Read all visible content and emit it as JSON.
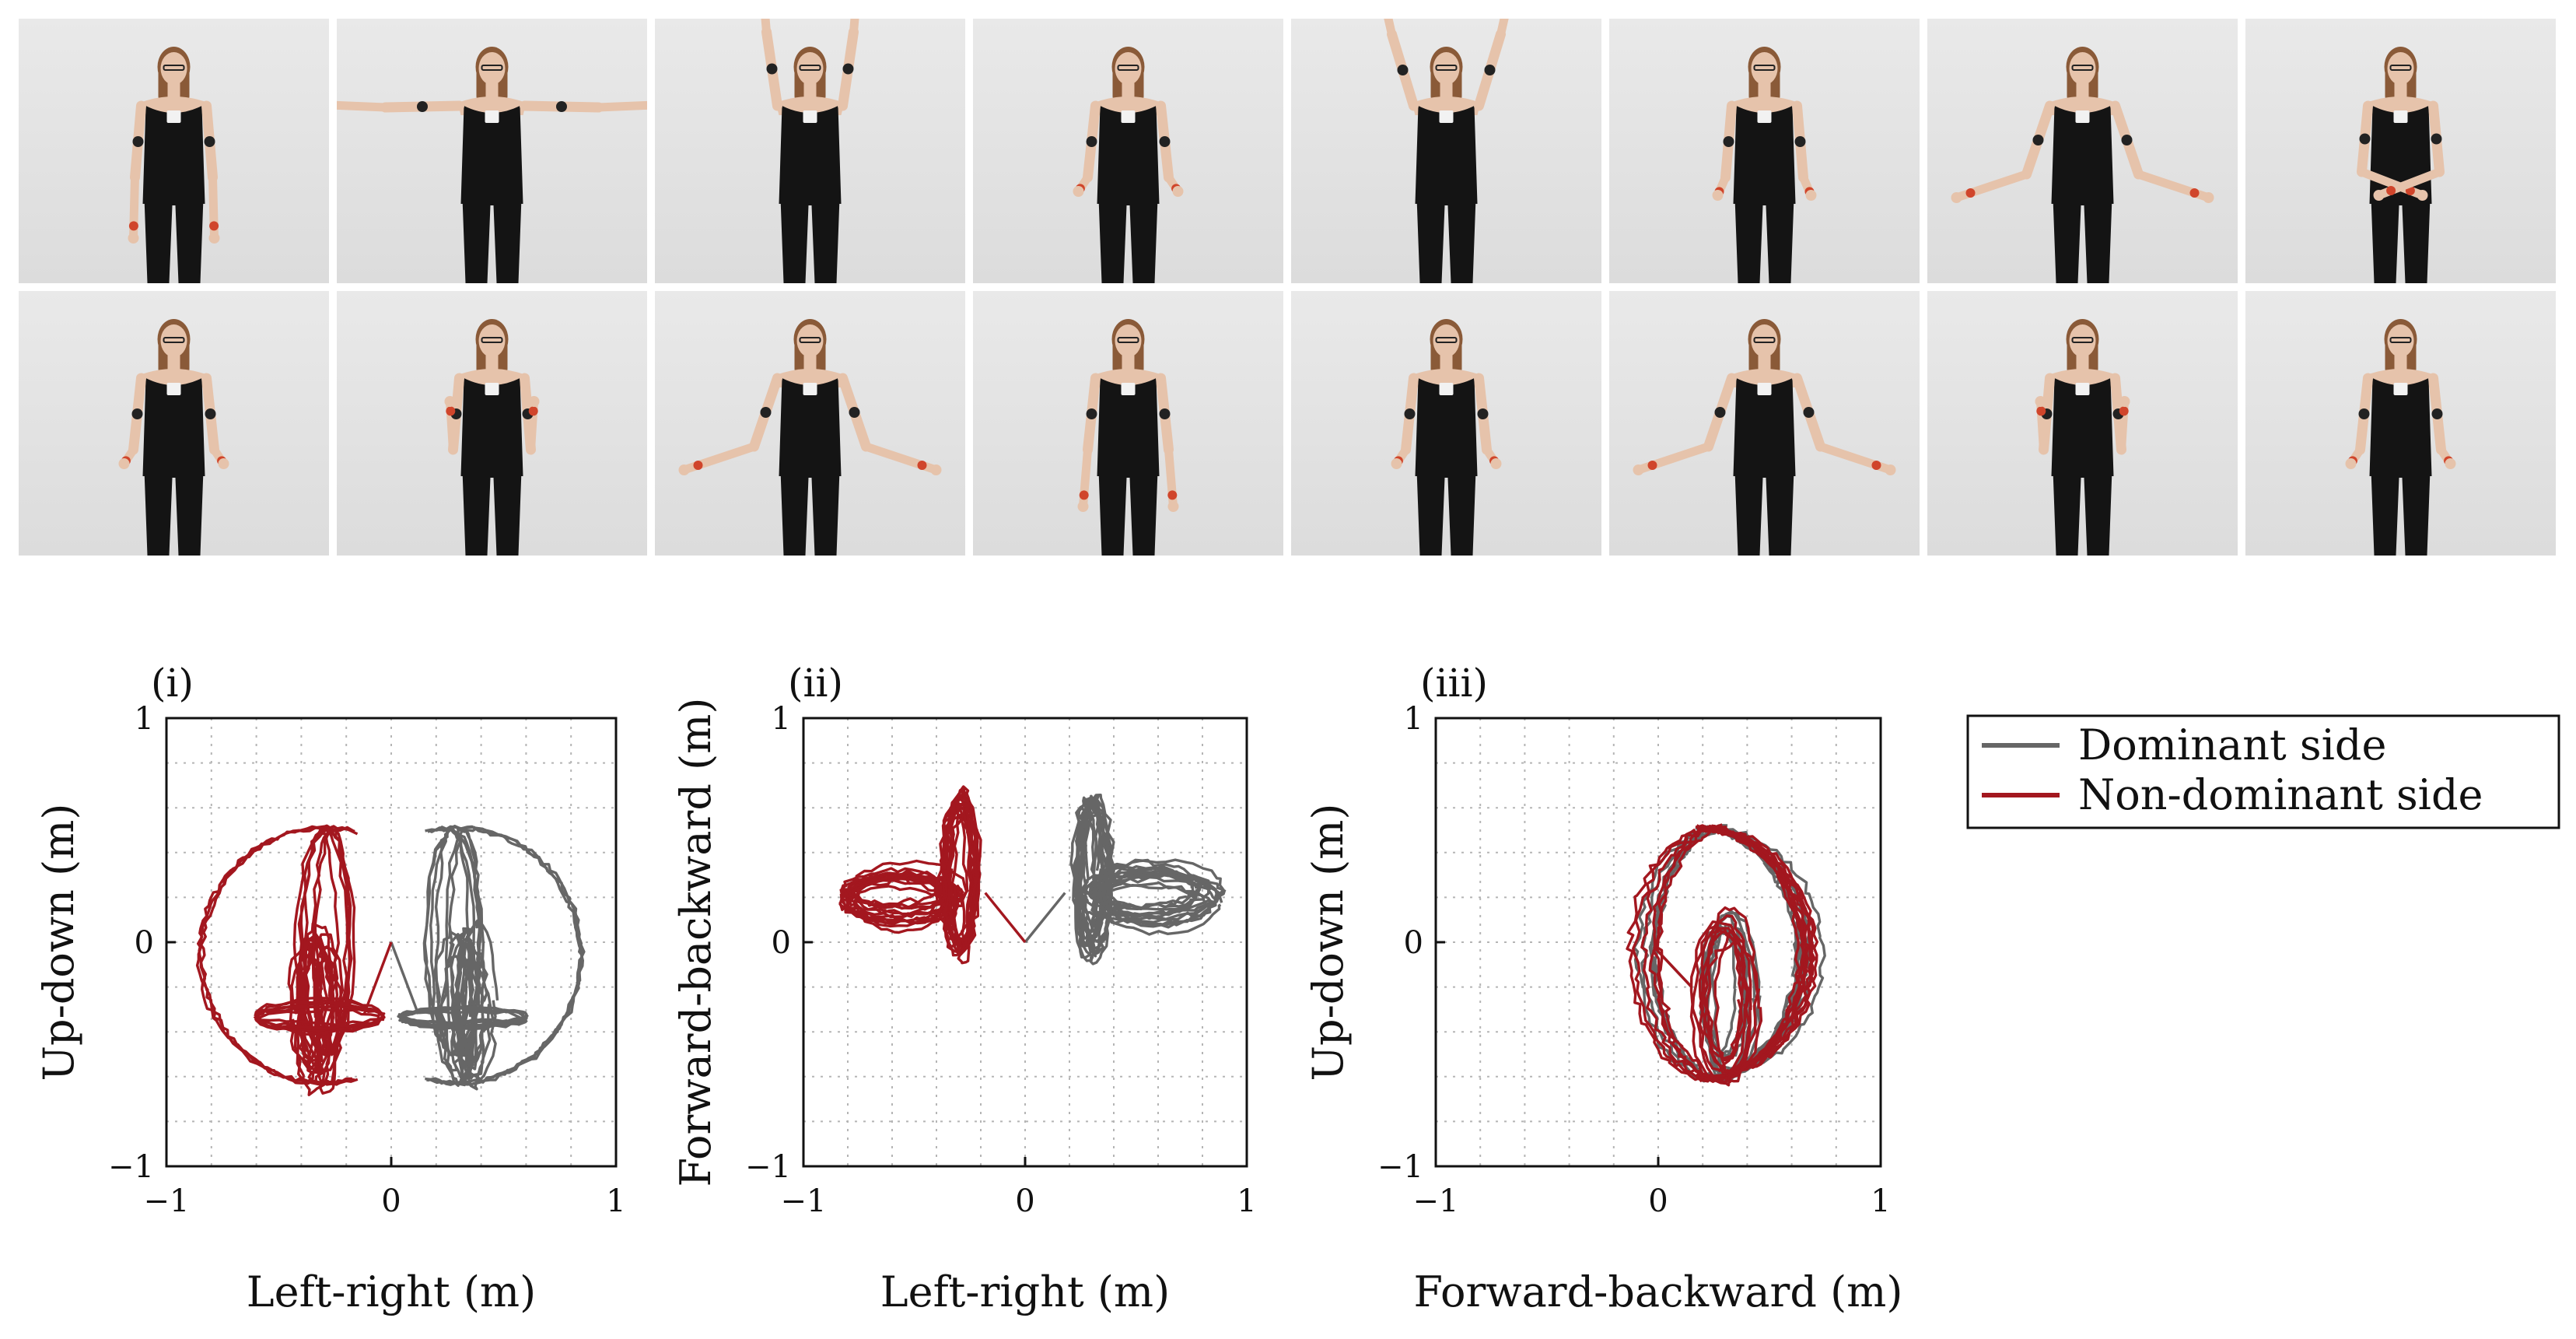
{
  "photos": {
    "rows": 2,
    "cols": 8,
    "arm_poses": [
      [
        "down",
        "t-pose",
        "up",
        "forearm-fwd",
        "up-wide",
        "forearm-fwd-close",
        "low-wide",
        "cross"
      ],
      [
        "forearm-fwd",
        "hands-up",
        "low-wide",
        "down-front",
        "forearm-fwd",
        "low-wide",
        "hands-up",
        "forearm-fwd"
      ]
    ],
    "colors": {
      "skin": "#e6c3ab",
      "top": "#141414",
      "sensor_band": "#222222",
      "sensor_red": "#d0452b",
      "sensor_white": "#f2f2f2",
      "hair": "#8a5a38"
    }
  },
  "legend": {
    "entries": [
      {
        "label": "Dominant side",
        "color": "#666666"
      },
      {
        "label": "Non-dominant side",
        "color": "#a3171f"
      }
    ]
  },
  "chart_data": [
    {
      "type": "line",
      "panel_label": "(i)",
      "xlabel": "Left-right (m)",
      "ylabel": "Up-down (m)",
      "xlim": [
        -1,
        1
      ],
      "ylim": [
        -1,
        1
      ],
      "xticks": [
        -1,
        0,
        1
      ],
      "yticks": [
        -1,
        0,
        1
      ],
      "xtick_labels": [
        "−1",
        "0",
        "1"
      ],
      "ytick_labels": [
        "−1",
        "0",
        "1"
      ],
      "grid": true,
      "series": [
        {
          "name": "Dominant side",
          "color": "#666666",
          "shape": "right-hand-circle"
        },
        {
          "name": "Non-dominant side",
          "color": "#a3171f",
          "shape": "left-hand-circle"
        }
      ]
    },
    {
      "type": "line",
      "panel_label": "(ii)",
      "xlabel": "Left-right (m)",
      "ylabel": "Forward-backward (m)",
      "xlim": [
        -1,
        1
      ],
      "ylim": [
        -1,
        1
      ],
      "xticks": [
        -1,
        0,
        1
      ],
      "yticks": [
        -1,
        0,
        1
      ],
      "xtick_labels": [
        "−1",
        "0",
        "1"
      ],
      "ytick_labels": [
        "−1",
        "0",
        "1"
      ],
      "grid": true,
      "series": [
        {
          "name": "Dominant side",
          "color": "#666666",
          "shape": "right-hand-loops"
        },
        {
          "name": "Non-dominant side",
          "color": "#a3171f",
          "shape": "left-hand-loops"
        }
      ]
    },
    {
      "type": "line",
      "panel_label": "(iii)",
      "xlabel": "Forward-backward (m)",
      "ylabel": "Up-down (m)",
      "xlim": [
        -1,
        1
      ],
      "ylim": [
        -1,
        1
      ],
      "xticks": [
        -1,
        0,
        1
      ],
      "yticks": [
        -1,
        0,
        1
      ],
      "xtick_labels": [
        "−1",
        "0",
        "1"
      ],
      "ytick_labels": [
        "−1",
        "0",
        "1"
      ],
      "grid": true,
      "series": [
        {
          "name": "Dominant side",
          "color": "#666666",
          "shape": "side-crescent"
        },
        {
          "name": "Non-dominant side",
          "color": "#a3171f",
          "shape": "side-crescent"
        }
      ]
    }
  ]
}
